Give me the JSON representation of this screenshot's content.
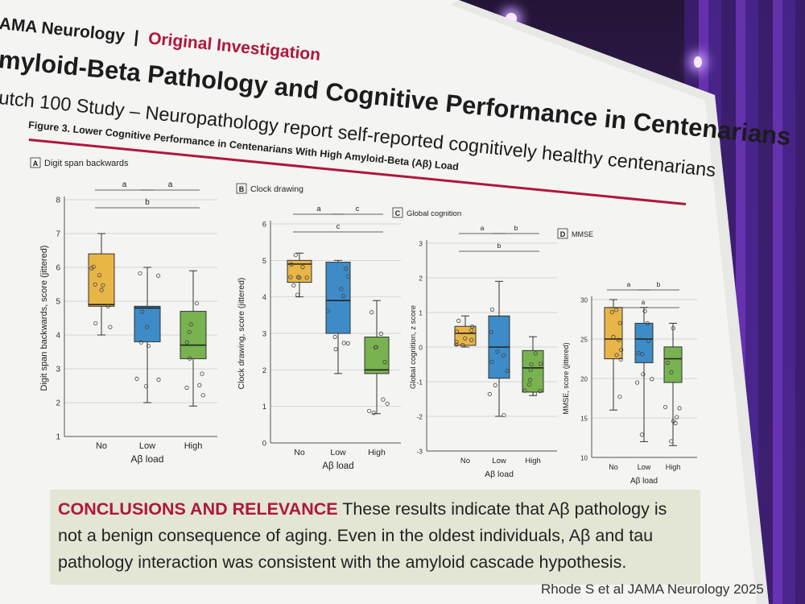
{
  "journal": {
    "name": "AMA Neurology",
    "separator": "|",
    "section": "Original Investigation"
  },
  "title_line1": "myloid-Beta Pathology and Cognitive Performance in Centenarians",
  "title_line2": "utch 100 Study – Neuropathology report self-reported cognitively healthy centenarians",
  "figure_caption": "Figure 3. Lower Cognitive Performance in Centenarians With High Amyloid-Beta (Aβ) Load",
  "conclusions": {
    "label": "CONCLUSIONS AND RELEVANCE",
    "text": " These results indicate that Aβ pathology is not a benign consequence of aging. Even in the oldest individuals, Aβ and tau pathology interaction was consistent with the amyloid cascade hypothesis."
  },
  "citation": "Rhode S et al JAMA Neurology 2025",
  "colors": {
    "no": "#e8b547",
    "low": "#3d8cc8",
    "high": "#78b34f",
    "accent": "#b0163b"
  },
  "chart_data": [
    {
      "type": "box",
      "panel": "A",
      "title": "Digit span backwards",
      "ylabel": "Digit span backwards, score (jittered)",
      "xlabel": "Aβ load",
      "categories": [
        "No",
        "Low",
        "High"
      ],
      "ylim": [
        1,
        8
      ],
      "yticks": [
        1,
        2,
        3,
        4,
        5,
        6,
        7,
        8
      ],
      "boxes": [
        {
          "q1": 4.85,
          "median": 4.9,
          "q3": 6.4,
          "min": 4.0,
          "max": 7.0
        },
        {
          "q1": 3.8,
          "median": 4.8,
          "q3": 4.85,
          "min": 2.0,
          "max": 6.0
        },
        {
          "q1": 3.3,
          "median": 3.7,
          "q3": 4.7,
          "min": 1.9,
          "max": 5.9
        }
      ],
      "sig": [
        {
          "label": "a",
          "from": 0,
          "to": 1,
          "level": 0
        },
        {
          "label": "a",
          "from": 1,
          "to": 2,
          "level": 0
        },
        {
          "label": "b",
          "from": 0,
          "to": 2,
          "level": 1
        }
      ]
    },
    {
      "type": "box",
      "panel": "B",
      "title": "Clock drawing",
      "ylabel": "Clock drawing, score (jittered)",
      "xlabel": "Aβ load",
      "categories": [
        "No",
        "Low",
        "High"
      ],
      "ylim": [
        0,
        6
      ],
      "yticks": [
        0,
        1,
        2,
        3,
        4,
        5,
        6
      ],
      "boxes": [
        {
          "q1": 4.4,
          "median": 4.9,
          "q3": 5.0,
          "min": 4.0,
          "max": 5.2
        },
        {
          "q1": 3.0,
          "median": 3.9,
          "q3": 4.95,
          "min": 1.9,
          "max": 5.0
        },
        {
          "q1": 1.9,
          "median": 2.0,
          "q3": 2.9,
          "min": 0.8,
          "max": 3.9
        }
      ],
      "sig": [
        {
          "label": "a",
          "from": 0,
          "to": 1,
          "level": 0
        },
        {
          "label": "c",
          "from": 1,
          "to": 2,
          "level": 0
        },
        {
          "label": "c",
          "from": 0,
          "to": 2,
          "level": 1
        }
      ]
    },
    {
      "type": "box",
      "panel": "C",
      "title": "Global cognition",
      "ylabel": "Global cognition, z score",
      "xlabel": "Aβ load",
      "categories": [
        "No",
        "Low",
        "High"
      ],
      "ylim": [
        -3,
        3
      ],
      "yticks": [
        -3,
        -2,
        -1,
        0,
        1,
        2,
        3
      ],
      "boxes": [
        {
          "q1": 0.05,
          "median": 0.4,
          "q3": 0.6,
          "min": 0.0,
          "max": 0.9
        },
        {
          "q1": -0.9,
          "median": 0.0,
          "q3": 0.9,
          "min": -2.0,
          "max": 1.9
        },
        {
          "q1": -1.3,
          "median": -0.6,
          "q3": -0.1,
          "min": -1.4,
          "max": 0.3
        }
      ],
      "sig": [
        {
          "label": "a",
          "from": 0,
          "to": 1,
          "level": 0
        },
        {
          "label": "b",
          "from": 1,
          "to": 2,
          "level": 0
        },
        {
          "label": "b",
          "from": 0,
          "to": 2,
          "level": 1
        }
      ]
    },
    {
      "type": "box",
      "panel": "D",
      "title": "MMSE",
      "ylabel": "MMSE, score (jittered)",
      "xlabel": "Aβ load",
      "categories": [
        "No",
        "Low",
        "High"
      ],
      "ylim": [
        10,
        30
      ],
      "yticks": [
        10,
        15,
        20,
        25,
        30
      ],
      "boxes": [
        {
          "q1": 22.5,
          "median": 25.0,
          "q3": 29.0,
          "min": 16.0,
          "max": 30.0
        },
        {
          "q1": 22.0,
          "median": 25.0,
          "q3": 27.0,
          "min": 12.0,
          "max": 29.0
        },
        {
          "q1": 19.5,
          "median": 22.5,
          "q3": 24.0,
          "min": 11.5,
          "max": 27.0
        }
      ],
      "sig": [
        {
          "label": "a",
          "from": 0,
          "to": 1,
          "level": 0
        },
        {
          "label": "b",
          "from": 1,
          "to": 2,
          "level": 0
        },
        {
          "label": "a",
          "from": 0,
          "to": 2,
          "level": 1
        }
      ]
    }
  ]
}
